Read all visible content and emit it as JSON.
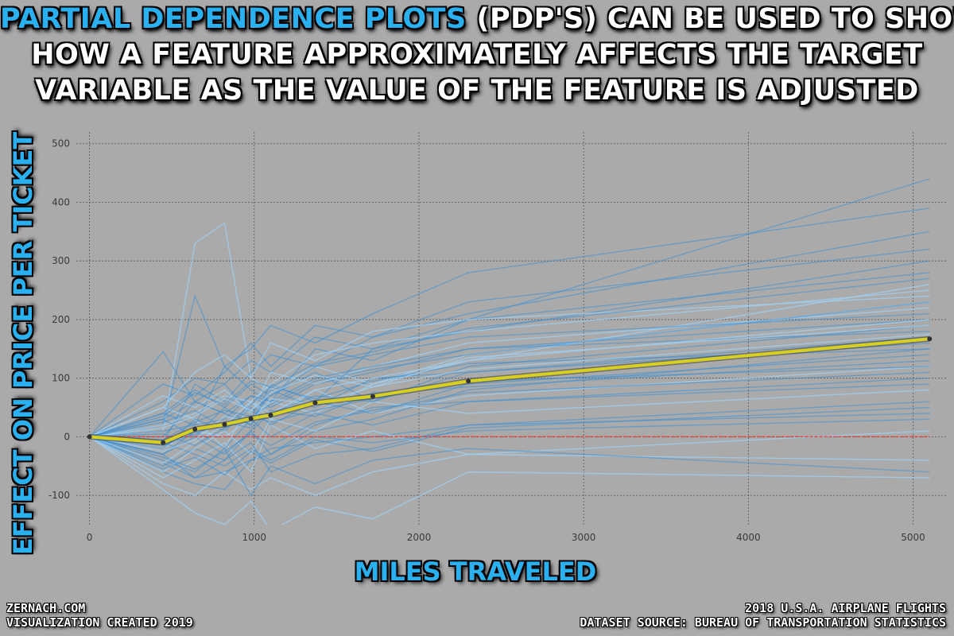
{
  "title": {
    "highlight": "PARTIAL DEPENDENCE PLOTS",
    "line1_rest": " (PDP'S) CAN BE USED TO SHOW",
    "line2": "HOW A FEATURE APPROXIMATELY AFFECTS THE TARGET",
    "line3": "VARIABLE AS THE VALUE OF THE  FEATURE IS ADJUSTED"
  },
  "footer": {
    "left_line1": "ZERNACH.COM",
    "left_line2": "VISUALIZATION CREATED 2019",
    "right_line1": "2018 U.S.A. AIRPLANE FLIGHTS",
    "right_line2": "DATASET SOURCE: BUREAU OF TRANSPORTATION STATISTICS"
  },
  "colors": {
    "background": "#aaaaaa",
    "highlight_text": "#2bb0ef",
    "ice_lines": "#3a8fd6",
    "ice_lines_light": "#9fd0f4",
    "pdp_line": "#d8d020",
    "zero_line": "#e0473a",
    "grid": "#555555"
  },
  "chart_data": {
    "type": "line",
    "title": "",
    "xlabel": "MILES TRAVELED",
    "ylabel": "EFFECT ON PRICE PER TICKET",
    "xlim": [
      -80,
      5200
    ],
    "ylim": [
      -150,
      520
    ],
    "xticks": [
      0,
      1000,
      2000,
      3000,
      4000,
      5000
    ],
    "yticks": [
      -100,
      0,
      100,
      200,
      300,
      400,
      500
    ],
    "grid": true,
    "x": [
      0,
      447,
      640,
      820,
      980,
      1100,
      1370,
      1720,
      2300,
      5100
    ],
    "series": [
      {
        "name": "",
        "role": "pdp-average",
        "values": [
          0,
          -10,
          13,
          21,
          31,
          37,
          58,
          69,
          95,
          167
        ]
      }
    ],
    "ice_lines": [
      [
        0,
        -45,
        -70,
        -60,
        -40,
        -30,
        10,
        30,
        80,
        150
      ],
      [
        0,
        -20,
        10,
        0,
        30,
        60,
        40,
        90,
        130,
        260
      ],
      [
        0,
        30,
        60,
        40,
        70,
        50,
        90,
        110,
        150,
        200
      ],
      [
        0,
        -60,
        -80,
        -90,
        -40,
        -20,
        -10,
        0,
        20,
        60
      ],
      [
        0,
        10,
        330,
        365,
        100,
        80,
        120,
        90,
        140,
        230
      ],
      [
        0,
        -30,
        0,
        50,
        20,
        90,
        60,
        150,
        180,
        300
      ],
      [
        0,
        145,
        60,
        90,
        40,
        70,
        110,
        60,
        120,
        190
      ],
      [
        0,
        -80,
        -100,
        -60,
        -90,
        -70,
        -100,
        -60,
        -30,
        10
      ],
      [
        0,
        40,
        20,
        120,
        80,
        60,
        150,
        130,
        200,
        440
      ],
      [
        0,
        -10,
        90,
        60,
        110,
        140,
        120,
        170,
        210,
        350
      ],
      [
        0,
        50,
        30,
        -20,
        60,
        30,
        80,
        40,
        70,
        120
      ],
      [
        0,
        -50,
        -20,
        -40,
        10,
        -30,
        20,
        50,
        60,
        90
      ],
      [
        0,
        20,
        240,
        120,
        150,
        190,
        160,
        210,
        280,
        390
      ],
      [
        0,
        -70,
        -40,
        -10,
        -60,
        20,
        -20,
        10,
        -30,
        -40
      ],
      [
        0,
        60,
        100,
        90,
        130,
        110,
        170,
        150,
        200,
        280
      ],
      [
        0,
        -40,
        -60,
        -20,
        -100,
        -50,
        -80,
        -40,
        -20,
        -60
      ],
      [
        0,
        70,
        50,
        80,
        40,
        110,
        90,
        120,
        160,
        220
      ],
      [
        0,
        -20,
        30,
        10,
        50,
        20,
        60,
        40,
        90,
        140
      ],
      [
        0,
        0,
        60,
        40,
        20,
        80,
        50,
        100,
        110,
        170
      ],
      [
        0,
        -90,
        -130,
        -150,
        -110,
        -160,
        -120,
        -140,
        -60,
        -70
      ],
      [
        0,
        90,
        70,
        110,
        160,
        120,
        190,
        170,
        230,
        320
      ],
      [
        0,
        -30,
        10,
        -20,
        30,
        0,
        40,
        20,
        60,
        100
      ],
      [
        0,
        20,
        40,
        70,
        60,
        90,
        140,
        160,
        180,
        250
      ],
      [
        0,
        -10,
        -30,
        -50,
        -20,
        -40,
        0,
        -10,
        10,
        30
      ],
      [
        0,
        40,
        80,
        50,
        90,
        70,
        120,
        140,
        170,
        210
      ],
      [
        0,
        -60,
        -20,
        10,
        -30,
        30,
        10,
        60,
        40,
        80
      ],
      [
        0,
        10,
        20,
        30,
        70,
        60,
        100,
        120,
        150,
        180
      ],
      [
        0,
        -30,
        -70,
        -40,
        -10,
        -60,
        -30,
        -20,
        20,
        40
      ],
      [
        0,
        50,
        110,
        140,
        100,
        160,
        130,
        180,
        200,
        240
      ],
      [
        0,
        -15,
        5,
        25,
        15,
        45,
        35,
        75,
        85,
        130
      ],
      [
        0,
        30,
        0,
        -30,
        10,
        40,
        70,
        60,
        110,
        160
      ],
      [
        0,
        -45,
        -10,
        20,
        60,
        40,
        80,
        100,
        130,
        200
      ],
      [
        0,
        25,
        45,
        15,
        55,
        85,
        65,
        95,
        125,
        150
      ],
      [
        0,
        -35,
        -55,
        -25,
        5,
        -15,
        25,
        45,
        75,
        110
      ],
      [
        0,
        15,
        35,
        65,
        45,
        75,
        105,
        85,
        135,
        190
      ],
      [
        0,
        -5,
        25,
        45,
        35,
        55,
        95,
        115,
        140,
        230
      ],
      [
        0,
        5,
        -15,
        15,
        35,
        25,
        45,
        65,
        95,
        120
      ],
      [
        0,
        -25,
        -5,
        35,
        25,
        65,
        55,
        85,
        115,
        175
      ],
      [
        0,
        35,
        75,
        55,
        95,
        85,
        125,
        145,
        185,
        270
      ],
      [
        0,
        -55,
        -35,
        -65,
        -25,
        -45,
        -5,
        -25,
        15,
        50
      ]
    ]
  }
}
